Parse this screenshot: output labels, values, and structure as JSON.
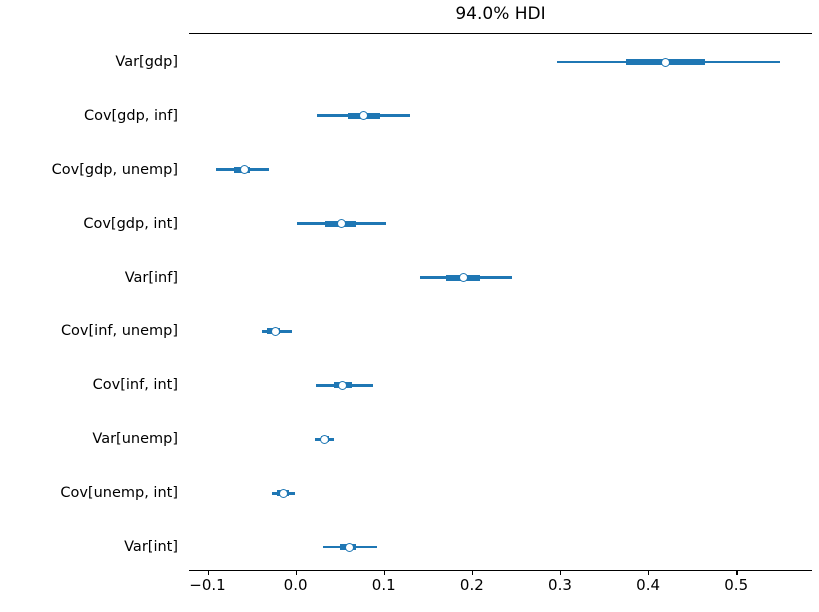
{
  "figure": {
    "title": "94.0% HDI",
    "background_color": "#ffffff",
    "text_color": "#000000",
    "accent_color": "#1f77b4"
  },
  "chart_data": {
    "type": "forest",
    "title": "94.0% HDI",
    "xlabel": "",
    "ylabel": "",
    "xlim": [
      -0.121,
      0.586
    ],
    "grid": false,
    "legend": false,
    "line_color": "#1f77b4",
    "marker_fill": "#ffffff",
    "x_ticks": [
      -0.1,
      0.0,
      0.1,
      0.2,
      0.3,
      0.4,
      0.5
    ],
    "x_tick_labels": [
      "−0.1",
      "0.0",
      "0.1",
      "0.2",
      "0.3",
      "0.4",
      "0.5"
    ],
    "rows": [
      {
        "label": "Var[gdp]",
        "hdi_low": 0.297,
        "hdi_high": 0.55,
        "q_low": 0.375,
        "q_high": 0.465,
        "median": 0.42
      },
      {
        "label": "Cov[gdp, inf]",
        "hdi_low": 0.024,
        "hdi_high": 0.13,
        "q_low": 0.06,
        "q_high": 0.096,
        "median": 0.077
      },
      {
        "label": "Cov[gdp, unemp]",
        "hdi_low": -0.09,
        "hdi_high": -0.03,
        "q_low": -0.07,
        "q_high": -0.052,
        "median": -0.058
      },
      {
        "label": "Cov[gdp, int]",
        "hdi_low": 0.001,
        "hdi_high": 0.103,
        "q_low": 0.033,
        "q_high": 0.069,
        "median": 0.052
      },
      {
        "label": "Var[inf]",
        "hdi_low": 0.141,
        "hdi_high": 0.245,
        "q_low": 0.171,
        "q_high": 0.209,
        "median": 0.191
      },
      {
        "label": "Cov[inf, unemp]",
        "hdi_low": -0.038,
        "hdi_high": -0.004,
        "q_low": -0.032,
        "q_high": -0.018,
        "median": -0.023
      },
      {
        "label": "Cov[inf, int]",
        "hdi_low": 0.023,
        "hdi_high": 0.088,
        "q_low": 0.043,
        "q_high": 0.064,
        "median": 0.053
      },
      {
        "label": "Var[unemp]",
        "hdi_low": 0.022,
        "hdi_high": 0.044,
        "q_low": 0.029,
        "q_high": 0.038,
        "median": 0.033
      },
      {
        "label": "Cov[unemp, int]",
        "hdi_low": -0.027,
        "hdi_high": -0.001,
        "q_low": -0.021,
        "q_high": -0.007,
        "median": -0.014
      },
      {
        "label": "Var[int]",
        "hdi_low": 0.031,
        "hdi_high": 0.092,
        "q_low": 0.05,
        "q_high": 0.069,
        "median": 0.061
      }
    ]
  }
}
